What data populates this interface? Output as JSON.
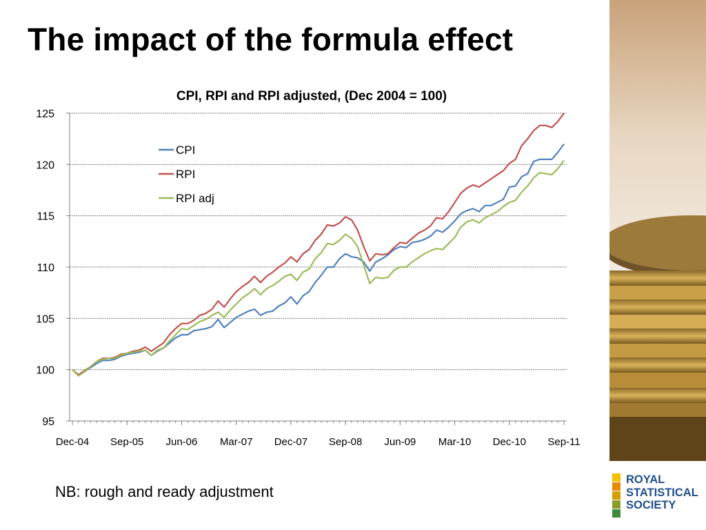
{
  "slide": {
    "title": "The impact of the formula effect",
    "note": "NB: rough and ready adjustment"
  },
  "logo": {
    "lines": [
      "ROYAL",
      "STATISTICAL",
      "SOCIETY"
    ],
    "text_color": "#1f4e8c",
    "bar_colors": [
      "#f5c000",
      "#e88a00",
      "#d4a000",
      "#8a9c2a",
      "#3e8a3a"
    ]
  },
  "decor": {
    "image": "stacked-coins"
  },
  "chart_data": {
    "type": "line",
    "title": "CPI, RPI and RPI adjusted, (Dec 2004 = 100)",
    "xlabel": "",
    "ylabel": "",
    "ylim": [
      95,
      125
    ],
    "yticks": [
      95,
      100,
      105,
      110,
      115,
      120,
      125
    ],
    "x_tick_labels": [
      "Dec-04",
      "Sep-05",
      "Jun-06",
      "Mar-07",
      "Dec-07",
      "Sep-08",
      "Jun-09",
      "Mar-10",
      "Dec-10",
      "Sep-11"
    ],
    "x_tick_interval_months": 9,
    "x_start": "Dec-04",
    "grid": true,
    "legend_position": "top-left",
    "series": [
      {
        "name": "CPI",
        "color": "#4f81bd",
        "values": [
          100.0,
          99.5,
          99.8,
          100.2,
          100.6,
          100.9,
          100.9,
          101.0,
          101.3,
          101.5,
          101.6,
          101.7,
          101.9,
          101.4,
          101.8,
          102.1,
          102.6,
          103.1,
          103.4,
          103.4,
          103.8,
          103.9,
          104.0,
          104.2,
          104.9,
          104.1,
          104.6,
          105.1,
          105.4,
          105.7,
          105.9,
          105.3,
          105.6,
          105.7,
          106.2,
          106.5,
          107.1,
          106.4,
          107.2,
          107.6,
          108.5,
          109.2,
          110.0,
          110.0,
          110.8,
          111.3,
          111.0,
          110.9,
          110.5,
          109.6,
          110.5,
          110.8,
          111.2,
          111.7,
          112.0,
          111.9,
          112.4,
          112.5,
          112.7,
          113.0,
          113.6,
          113.4,
          113.9,
          114.5,
          115.2,
          115.5,
          115.7,
          115.4,
          116.0,
          116.0,
          116.3,
          116.6,
          117.8,
          117.9,
          118.8,
          119.1,
          120.3,
          120.5,
          120.5,
          120.5,
          121.2,
          122.0
        ]
      },
      {
        "name": "RPI",
        "color": "#c0504d",
        "values": [
          100.0,
          99.5,
          99.9,
          100.3,
          100.8,
          101.1,
          101.1,
          101.2,
          101.5,
          101.6,
          101.8,
          101.9,
          102.2,
          101.8,
          102.2,
          102.6,
          103.4,
          104.0,
          104.5,
          104.5,
          104.8,
          105.3,
          105.5,
          105.9,
          106.7,
          106.1,
          106.9,
          107.6,
          108.1,
          108.5,
          109.1,
          108.5,
          109.1,
          109.5,
          110.0,
          110.4,
          111.0,
          110.5,
          111.3,
          111.7,
          112.6,
          113.2,
          114.1,
          114.0,
          114.3,
          114.9,
          114.6,
          113.6,
          112.0,
          110.6,
          111.3,
          111.2,
          111.3,
          111.9,
          112.4,
          112.3,
          112.8,
          113.3,
          113.6,
          114.0,
          114.8,
          114.7,
          115.4,
          116.3,
          117.2,
          117.7,
          118.0,
          117.8,
          118.2,
          118.6,
          119.0,
          119.4,
          120.1,
          120.5,
          121.8,
          122.5,
          123.3,
          123.8,
          123.8,
          123.6,
          124.2,
          125.0
        ]
      },
      {
        "name": "RPI adj",
        "color": "#9bbb59",
        "values": [
          100.0,
          99.4,
          99.8,
          100.3,
          100.8,
          101.0,
          101.1,
          101.1,
          101.4,
          101.6,
          101.7,
          101.8,
          101.9,
          101.4,
          101.9,
          102.1,
          102.8,
          103.4,
          104.0,
          103.9,
          104.3,
          104.7,
          104.9,
          105.3,
          105.6,
          105.1,
          105.8,
          106.4,
          107.0,
          107.4,
          107.9,
          107.3,
          107.9,
          108.2,
          108.6,
          109.1,
          109.3,
          108.7,
          109.5,
          109.8,
          110.8,
          111.4,
          112.3,
          112.2,
          112.6,
          113.2,
          112.8,
          112.0,
          110.2,
          108.4,
          109.0,
          108.9,
          109.0,
          109.7,
          110.0,
          110.0,
          110.5,
          110.9,
          111.3,
          111.6,
          111.8,
          111.7,
          112.3,
          112.9,
          113.9,
          114.4,
          114.6,
          114.3,
          114.8,
          115.1,
          115.4,
          115.9,
          116.3,
          116.5,
          117.3,
          117.9,
          118.7,
          119.2,
          119.1,
          119.0,
          119.6,
          120.4
        ]
      }
    ]
  }
}
